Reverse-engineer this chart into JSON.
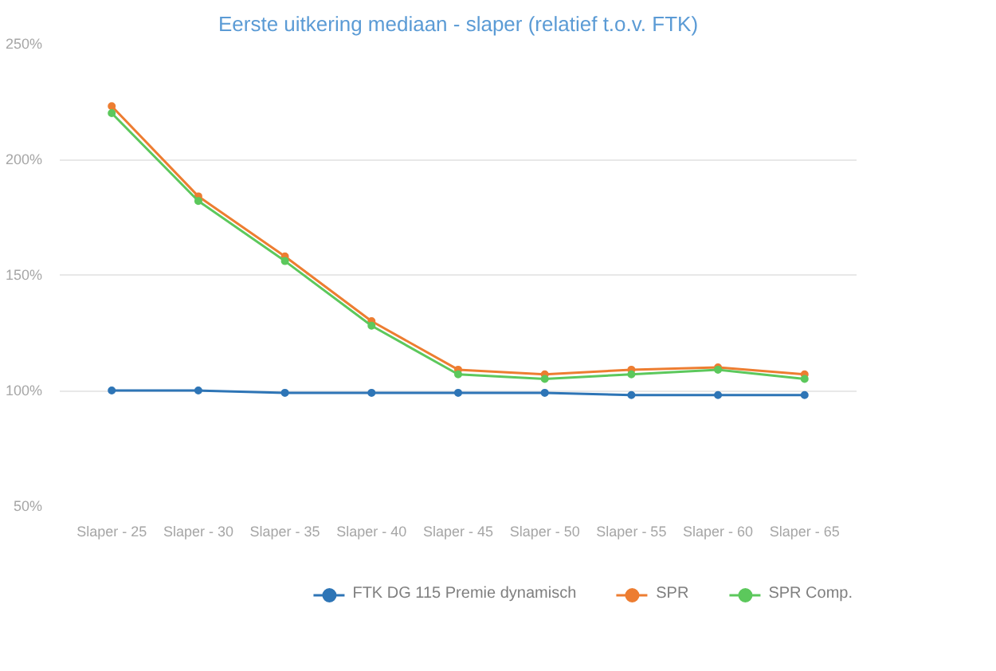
{
  "chart_data": {
    "type": "line",
    "title": "Eerste uitkering mediaan - slaper (relatief t.o.v. FTK)",
    "categories": [
      "Slaper - 25",
      "Slaper - 30",
      "Slaper - 35",
      "Slaper - 40",
      "Slaper - 45",
      "Slaper - 50",
      "Slaper - 55",
      "Slaper - 60",
      "Slaper - 65"
    ],
    "series": [
      {
        "name": "FTK DG 115 Premie dynamisch",
        "color": "#2e75b6",
        "values": [
          100,
          100,
          99,
          99,
          99,
          99,
          98,
          98,
          98
        ]
      },
      {
        "name": "SPR",
        "color": "#ed7d31",
        "values": [
          223,
          184,
          158,
          130,
          109,
          107,
          109,
          110,
          107
        ]
      },
      {
        "name": "SPR Comp.",
        "color": "#5cc85c",
        "values": [
          220,
          182,
          156,
          128,
          107,
          105,
          107,
          109,
          105
        ]
      }
    ],
    "ylim": [
      50,
      250
    ],
    "yticks": [
      {
        "value": 50,
        "label": "50%"
      },
      {
        "value": 100,
        "label": "100%"
      },
      {
        "value": 150,
        "label": "150%"
      },
      {
        "value": 200,
        "label": "200%"
      },
      {
        "value": 250,
        "label": "250%"
      }
    ],
    "grid": "y",
    "legend": "bottom",
    "marker": "circle",
    "line_style": "solid"
  }
}
